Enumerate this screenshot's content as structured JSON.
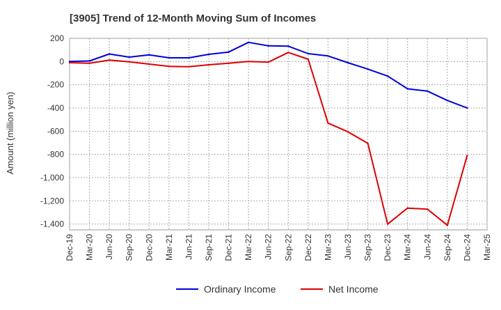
{
  "chart_data": {
    "type": "line",
    "title": "[3905]  Trend of 12-Month Moving Sum of Incomes",
    "ylabel": "Amount (million yen)",
    "xlabel": "",
    "ylim": [
      -1450,
      200
    ],
    "yticks": [
      200,
      0,
      -200,
      -400,
      -600,
      -800,
      -1000,
      -1200,
      -1400
    ],
    "ytick_labels": [
      "200",
      "0",
      "-200",
      "-400",
      "-600",
      "-800",
      "-1,000",
      "-1,200",
      "-1,400"
    ],
    "categories": [
      "Dec-19",
      "Mar-20",
      "Jun-20",
      "Sep-20",
      "Dec-20",
      "Mar-21",
      "Jun-21",
      "Sep-21",
      "Dec-21",
      "Mar-22",
      "Jun-22",
      "Sep-22",
      "Dec-22",
      "Mar-23",
      "Jun-23",
      "Sep-23",
      "Dec-23",
      "Mar-24",
      "Jun-24",
      "Sep-24",
      "Dec-24",
      "Mar-25"
    ],
    "grid": true,
    "legend_position": "bottom",
    "series": [
      {
        "name": "Ordinary Income",
        "color": "#0000dd",
        "values": [
          0,
          5,
          65,
          38,
          58,
          32,
          32,
          62,
          82,
          165,
          135,
          132,
          68,
          48,
          -10,
          -65,
          -125,
          -235,
          -255,
          -335,
          -400,
          null
        ]
      },
      {
        "name": "Net Income",
        "color": "#dd0000",
        "values": [
          -10,
          -15,
          12,
          -2,
          -22,
          -42,
          -45,
          -28,
          -15,
          0,
          -5,
          78,
          20,
          -530,
          -605,
          -705,
          -1400,
          -1262,
          -1272,
          -1410,
          -810,
          null
        ]
      }
    ]
  }
}
